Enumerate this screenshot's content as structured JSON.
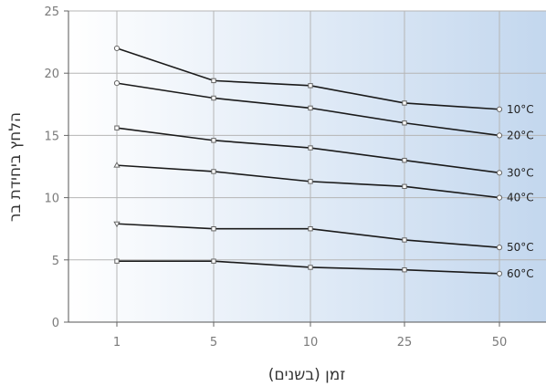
{
  "chart_data": {
    "type": "line",
    "title": "",
    "xlabel": "זמן (בשנים)",
    "ylabel": "הלחץ ביחידת בר",
    "categories": [
      "1",
      "5",
      "10",
      "25",
      "50"
    ],
    "ylim": [
      0,
      25
    ],
    "yticks": [
      "0",
      "5",
      "10",
      "15",
      "20",
      "25"
    ],
    "grid": true,
    "background": {
      "from": "#ffffff",
      "to": "#c3d7ee"
    },
    "series": [
      {
        "name": "10°C",
        "values": [
          22.0,
          19.4,
          19.0,
          17.6,
          17.1
        ],
        "marker": "circle"
      },
      {
        "name": "20°C",
        "values": [
          19.2,
          18.0,
          17.2,
          16.0,
          15.0
        ],
        "marker": "circle"
      },
      {
        "name": "30°C",
        "values": [
          15.6,
          14.6,
          14.0,
          13.0,
          12.0
        ],
        "marker": "square"
      },
      {
        "name": "40°C",
        "values": [
          12.6,
          12.1,
          11.3,
          10.9,
          10.0
        ],
        "marker": "triangle"
      },
      {
        "name": "50°C",
        "values": [
          7.9,
          7.5,
          7.5,
          6.6,
          6.0
        ],
        "marker": "triangle-down"
      },
      {
        "name": "60°C",
        "values": [
          4.9,
          4.9,
          4.4,
          4.2,
          3.9
        ],
        "marker": "square"
      }
    ]
  }
}
